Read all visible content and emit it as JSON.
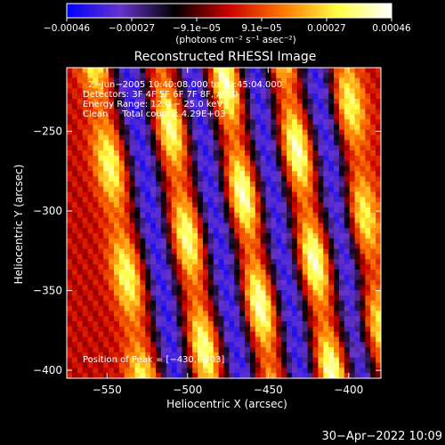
{
  "chart_data": {
    "type": "heatmap",
    "title": "Reconstructed RHESSI Image",
    "xlabel": "Heliocentric X (arcsec)",
    "ylabel": "Heliocentric Y (arcsec)",
    "xlim": [
      -575,
      -380
    ],
    "ylim": [
      -405,
      -210
    ],
    "x_ticks": [
      -550,
      -500,
      -450,
      -400
    ],
    "y_ticks": [
      -250,
      -300,
      -350,
      -400
    ],
    "x_tick_labels": [
      "−550",
      "−500",
      "−450",
      "−400"
    ],
    "y_tick_labels": [
      "−250",
      "−300",
      "−350",
      "−400"
    ],
    "colorbar": {
      "min": -0.00046,
      "max": 0.00046,
      "tick_labels": [
        "−0.00046",
        "−0.00027",
        "−9.1e−05",
        "9.1e−05",
        "0.00027",
        "0.00046"
      ],
      "unit_label": "(photons cm⁻² s⁻¹ asec⁻²)",
      "colormap_stops": [
        "#0000ff",
        "#6633cc",
        "#000000",
        "#cc0000",
        "#ff7700",
        "#ffff44",
        "#ffffff"
      ]
    },
    "annotations": {
      "time_range": "2−Jun−2005 10:40:08.000 to 10:45:04.000",
      "detectors": "Detectors: 3F 4F 5F 6F 7F 8F, Att 0",
      "energy": "Energy Range: 12.0 − 25.0 keV",
      "clean": "Clean     Total counts: 4.29E+03",
      "peak": "Position of Peak = [−430,−303]"
    },
    "peak_position": [
      -430,
      -303
    ],
    "bright_ridges": [
      {
        "x_top": -557,
        "x_bottom": -527,
        "brightness": 0.8
      },
      {
        "x_top": -516,
        "x_bottom": -487,
        "brightness": 0.9
      },
      {
        "x_top": -478,
        "x_bottom": -448,
        "brightness": 1.0
      },
      {
        "x_top": -440,
        "x_bottom": -410,
        "brightness": 1.0
      },
      {
        "x_top": -403,
        "x_bottom": -379,
        "brightness": 0.8
      }
    ],
    "dark_ridges": [
      {
        "x_top": -537,
        "x_bottom": -507
      },
      {
        "x_top": -497,
        "x_bottom": -467
      },
      {
        "x_top": -459,
        "x_bottom": -429
      },
      {
        "x_top": -421,
        "x_bottom": -391
      }
    ]
  },
  "footer": {
    "timestamp": "30−Apr−2022 10:09"
  }
}
